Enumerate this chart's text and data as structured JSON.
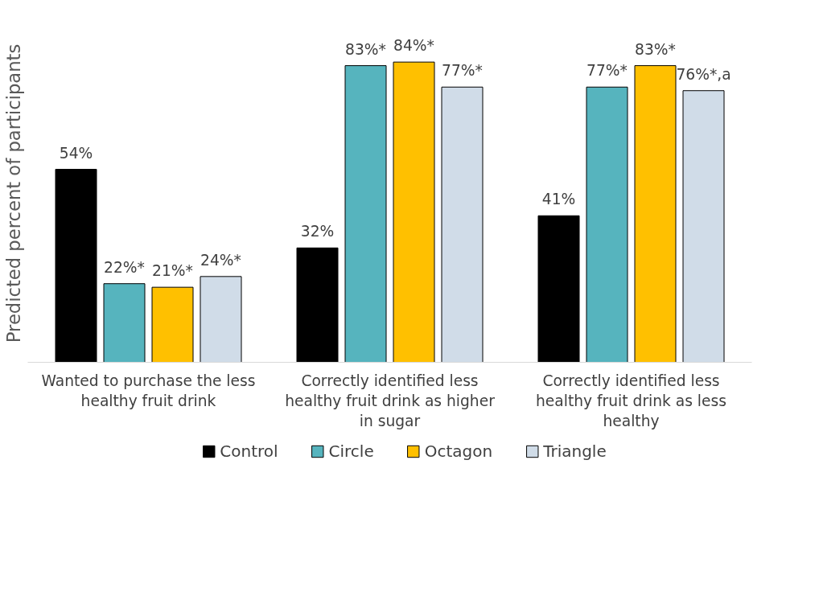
{
  "chart_data": {
    "type": "bar",
    "ylabel": "Predicted percent of participants",
    "categories": [
      "Wanted to purchase the less healthy fruit drink",
      "Correctly identified less healthy fruit drink as higher in sugar",
      "Correctly identified less healthy fruit drink as less healthy"
    ],
    "series": [
      {
        "name": "Control",
        "color": "#000000",
        "values": [
          54,
          32,
          41
        ],
        "value_labels": [
          "54%",
          "32%",
          "41%"
        ]
      },
      {
        "name": "Circle",
        "color": "#56b4be",
        "values": [
          22,
          83,
          77
        ],
        "value_labels": [
          "22%*",
          "83%*",
          "77%*"
        ]
      },
      {
        "name": "Octagon",
        "color": "#ffc000",
        "values": [
          21,
          84,
          83
        ],
        "value_labels": [
          "21%*",
          "84%*",
          "83%*"
        ]
      },
      {
        "name": "Triangle",
        "color": "#d0dce8",
        "values": [
          24,
          77,
          76
        ],
        "value_labels": [
          "24%*",
          "77%*",
          "76%*,a"
        ]
      }
    ],
    "tick_labels": "x",
    "grid": false,
    "legend": "bottom"
  }
}
